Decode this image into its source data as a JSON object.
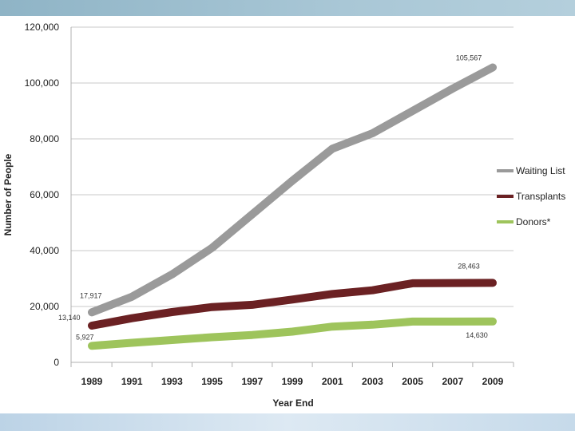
{
  "chart_data": {
    "type": "line",
    "title": "",
    "xlabel": "Year End",
    "ylabel": "Number of People",
    "categories": [
      "1989",
      "1991",
      "1993",
      "1995",
      "1997",
      "1999",
      "2001",
      "2003",
      "2005",
      "2007",
      "2009"
    ],
    "ylim": [
      0,
      120000
    ],
    "yticks": [
      "0",
      "20,000",
      "40,000",
      "60,000",
      "80,000",
      "100,000",
      "120,000"
    ],
    "ytick_values": [
      0,
      20000,
      40000,
      60000,
      80000,
      100000,
      120000
    ],
    "grid": true,
    "legend_position": "right",
    "series": [
      {
        "name": "Waiting List",
        "color": "#9a9a9a",
        "values": [
          17917,
          23500,
          31500,
          41000,
          53000,
          65000,
          76500,
          82000,
          90000,
          98000,
          105567
        ],
        "labels": [
          {
            "index": 0,
            "text": "17,917"
          },
          {
            "index": 10,
            "text": "105,567"
          }
        ]
      },
      {
        "name": "Transplants",
        "color": "#6b2123",
        "values": [
          13140,
          15800,
          18000,
          19800,
          20600,
          22500,
          24500,
          25800,
          28300,
          28400,
          28463
        ],
        "labels": [
          {
            "index": 0,
            "text": "13,140"
          },
          {
            "index": 10,
            "text": "28,463"
          }
        ]
      },
      {
        "name": "Donors*",
        "color": "#9ec45c",
        "values": [
          5927,
          7000,
          8000,
          9000,
          9800,
          11000,
          12800,
          13500,
          14600,
          14600,
          14630
        ],
        "labels": [
          {
            "index": 0,
            "text": "5,927"
          },
          {
            "index": 10,
            "text": "14,630"
          }
        ]
      }
    ]
  }
}
